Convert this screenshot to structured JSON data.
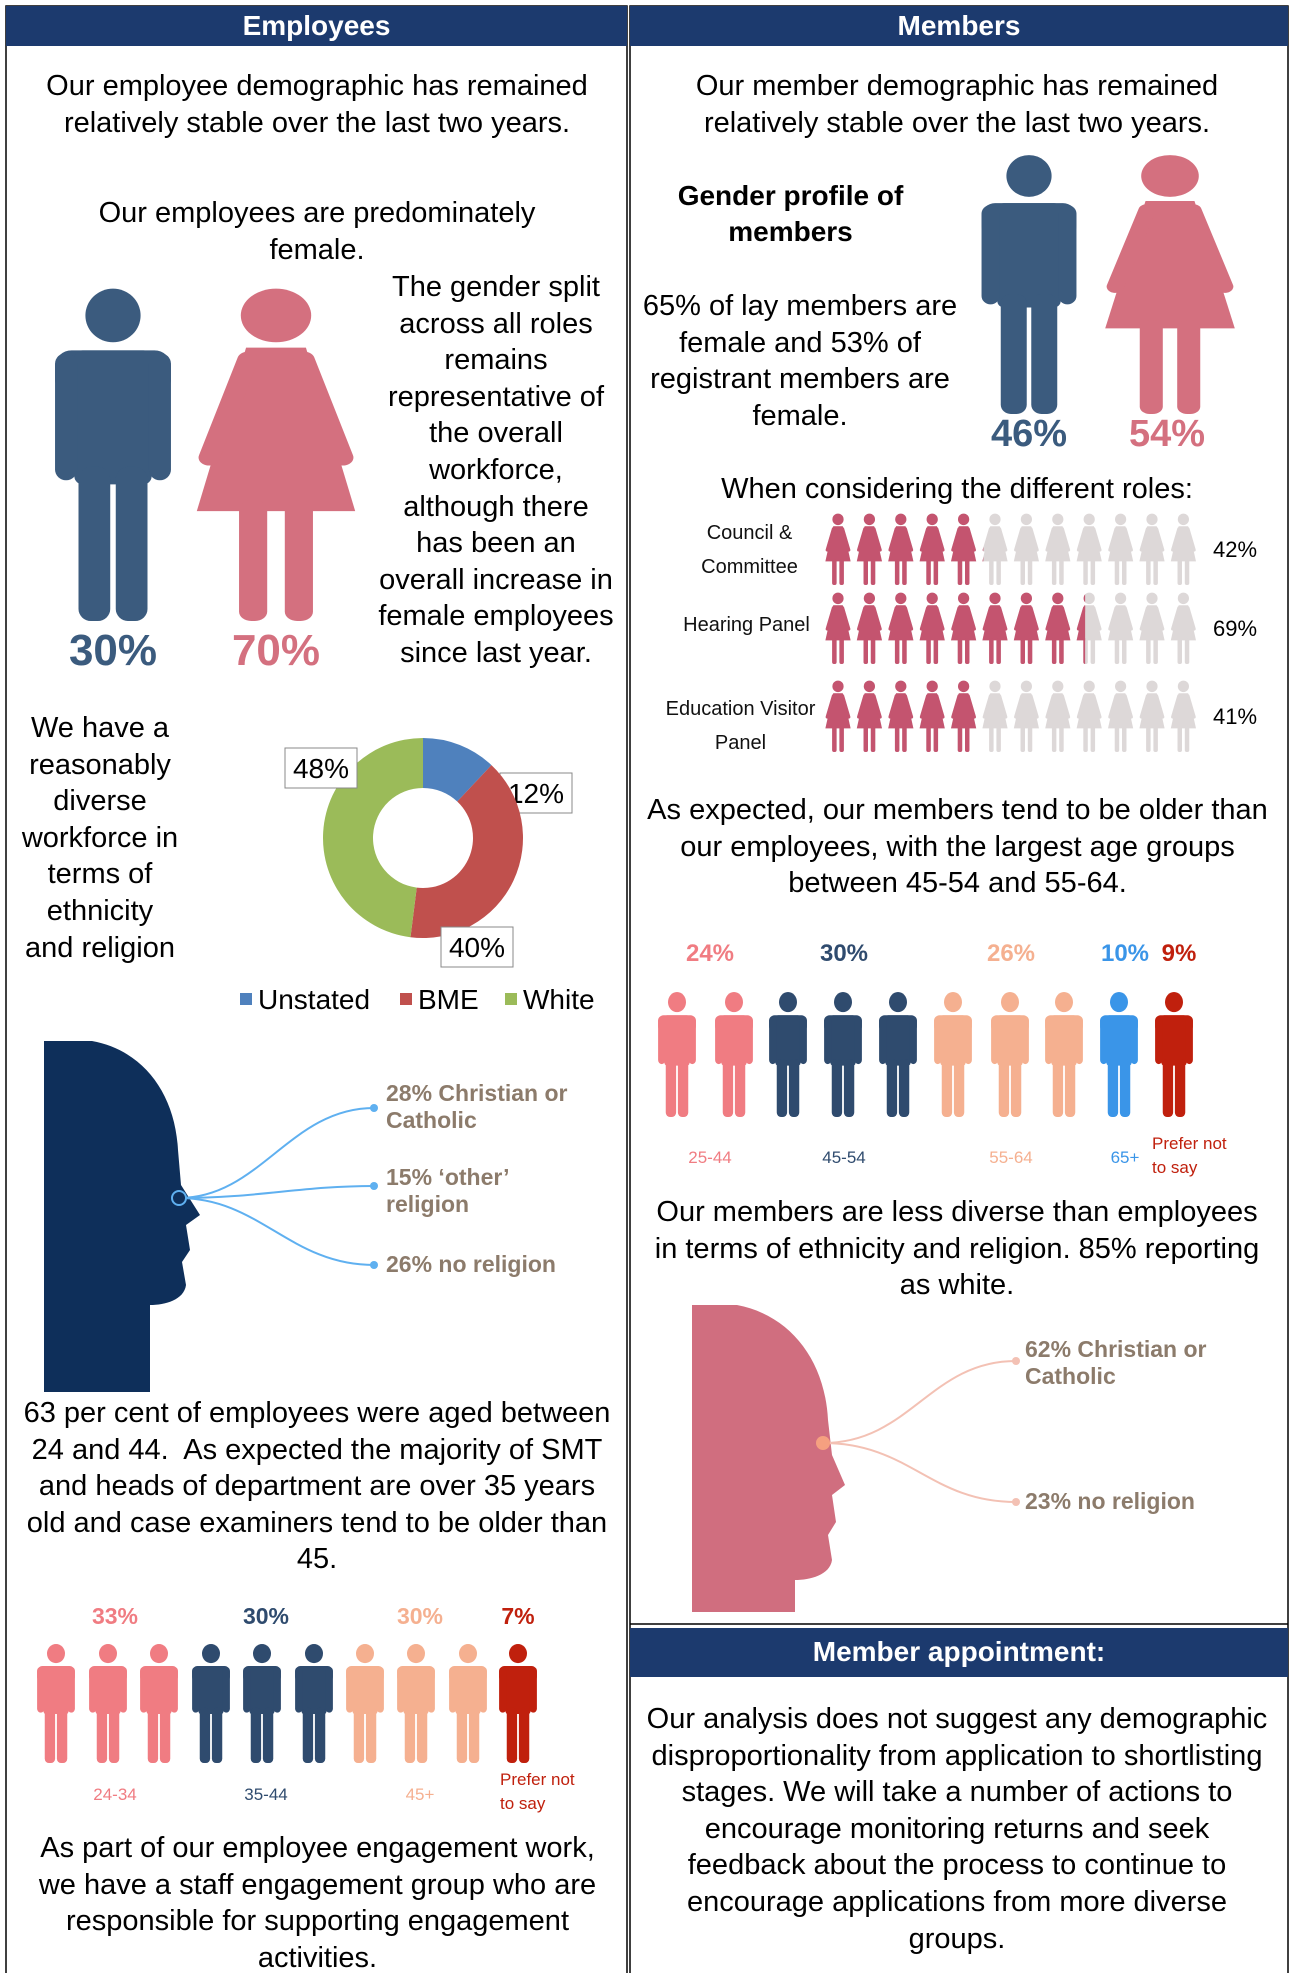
{
  "employees": {
    "header": "Employees",
    "intro": "Our employee demographic has remained relatively stable over the last two years.",
    "gender_intro": "Our employees are predominately female.",
    "gender": {
      "male": "30%",
      "female": "70%"
    },
    "gender_note": "The gender split across all roles remains representative of the overall workforce, although there has been an overall increase in female employees since last year.",
    "diversity_note": "We have a reasonably diverse workforce in terms of ethnicity and religion",
    "ethnicity_chart": {
      "type": "donut",
      "categories": [
        "Unstated",
        "BME",
        "White"
      ],
      "values": [
        12,
        40,
        48
      ],
      "value_labels": [
        "12%",
        "40%",
        "48%"
      ],
      "colors": [
        "#4f81bd",
        "#c0504d",
        "#9bbb59"
      ]
    },
    "religion": [
      "28% Christian or Catholic",
      "15% ‘other’ religion",
      "26% no religion"
    ],
    "age_note": "63 per cent of employees were aged between 24 and 44.  As expected the majority of SMT and heads of department are over 35 years old and case examiners tend to be older than 45.",
    "age_groups": [
      {
        "share": "33%",
        "label": "24-34"
      },
      {
        "share": "30%",
        "label": "35-44"
      },
      {
        "share": "30%",
        "label": "45+"
      },
      {
        "share": "7%",
        "label": "Prefer not to say"
      }
    ],
    "engagement": "As part of our employee engagement work, we have a staff engagement group who are responsible for supporting engagement activities."
  },
  "members": {
    "header": "Members",
    "intro": "Our member demographic has remained relatively stable over the last two years.",
    "gender_heading": "Gender profile of members",
    "gender_note": "65% of lay members are female and 53% of registrant members are female.",
    "gender": {
      "male": "46%",
      "female": "54%"
    },
    "roles": {
      "intro": "When considering the different roles:",
      "categories": [
        "Council & Committee",
        "Hearing Panel",
        "Education Visitor Panel"
      ],
      "values": [
        42,
        69,
        41
      ],
      "value_labels": [
        "42%",
        "69%",
        "41%"
      ]
    },
    "age_note": "As expected, our members tend to be older than our employees, with the largest age groups between 45-54 and 55-64.",
    "age_groups": [
      {
        "share": "24%",
        "label": "25-44"
      },
      {
        "share": "30%",
        "label": "45-54"
      },
      {
        "share": "26%",
        "label": "55-64"
      },
      {
        "share": "10%",
        "label": "65+"
      },
      {
        "share": "9%",
        "label": "Prefer not to say"
      }
    ],
    "diversity_note": "Our members are less diverse than employees in terms of ethnicity and religion. 85% reporting as white.",
    "religion": [
      "62% Christian or Catholic",
      "23% no religion"
    ],
    "appointment_header": "Member appointment:",
    "appointment": "Our analysis does not suggest any demographic disproportionality from application to shortlisting stages. We will take a number of actions to encourage monitoring returns and seek feedback about the process to continue to encourage applications from more diverse groups."
  }
}
